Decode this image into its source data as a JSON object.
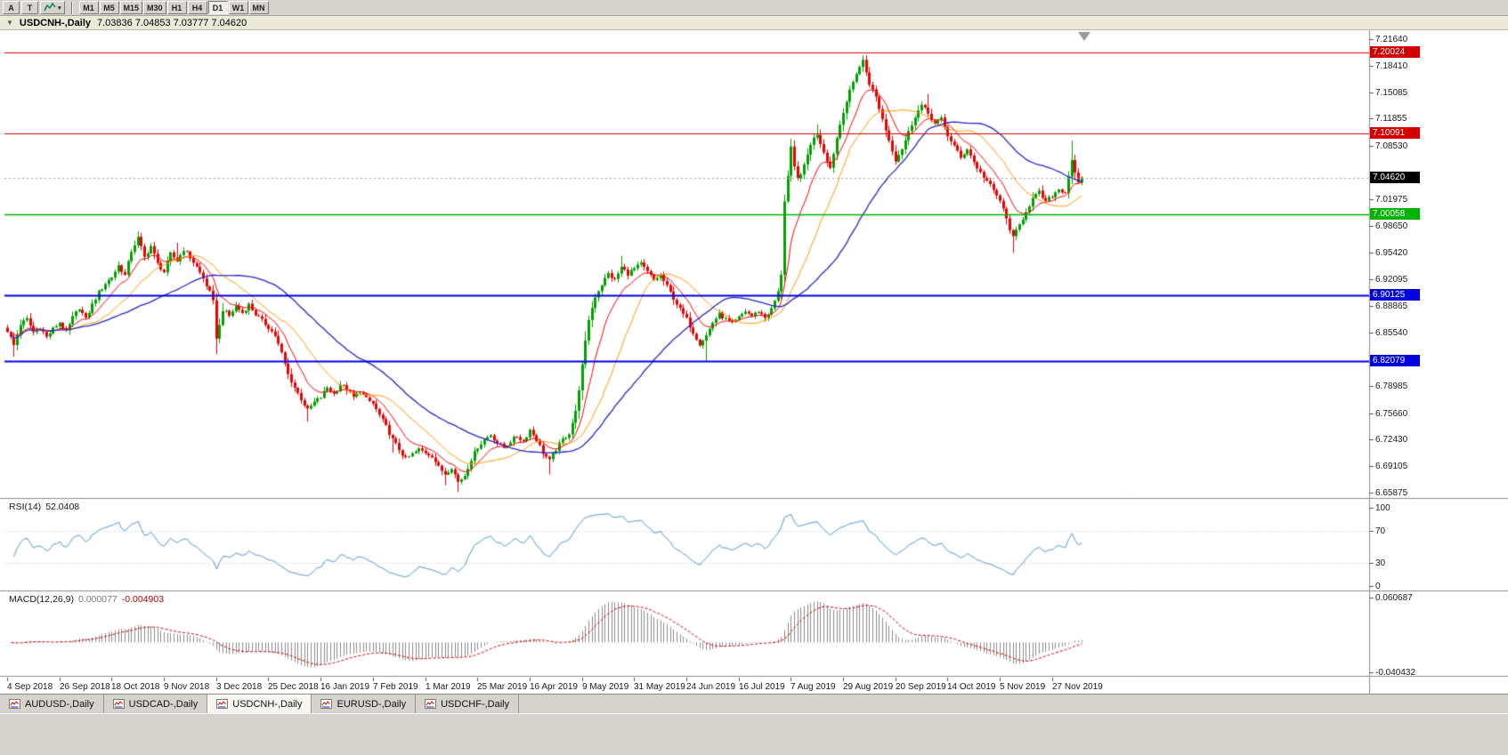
{
  "toolbar": {
    "left_buttons": [
      {
        "label": "A"
      },
      {
        "label": "T"
      }
    ],
    "timeframes": [
      "M1",
      "M5",
      "M15",
      "M30",
      "H1",
      "H4",
      "D1",
      "W1",
      "MN"
    ],
    "active_timeframe": "D1"
  },
  "chart": {
    "title": "USDCNH-,Daily",
    "ohlc_text": "7.03836 7.04853 7.03777 7.04620",
    "price_axis_ticks": [
      "7.21640",
      "7.18410",
      "7.15085",
      "7.11855",
      "7.08530",
      "7.01975",
      "6.98650",
      "6.95420",
      "6.92095",
      "6.88865",
      "6.85540",
      "6.78985",
      "6.75660",
      "6.72430",
      "6.69105",
      "6.65875"
    ],
    "price_badges": [
      {
        "label": "7.20024",
        "price": 7.20024,
        "color": "#d40000",
        "line_width": 1.2,
        "style": "solid"
      },
      {
        "label": "7.10091",
        "price": 7.10091,
        "color": "#d40000",
        "line_width": 1.2,
        "style": "solid"
      },
      {
        "label": "7.04620",
        "price": 7.0462,
        "color": "#000000",
        "line_width": 1,
        "style": "dotted"
      },
      {
        "label": "7.00058",
        "price": 7.00058,
        "color": "#00b300",
        "line_width": 1.6,
        "style": "solid"
      },
      {
        "label": "6.90125",
        "price": 6.90125,
        "color": "#0000e0",
        "line_width": 2,
        "style": "solid"
      },
      {
        "label": "6.82079",
        "price": 6.82079,
        "color": "#0000e0",
        "line_width": 2,
        "style": "solid"
      }
    ],
    "date_labels": [
      "4 Sep 2018",
      "26 Sep 2018",
      "18 Oct 2018",
      "9 Nov 2018",
      "3 Dec 2018",
      "25 Dec 2018",
      "16 Jan 2019",
      "7 Feb 2019",
      "1 Mar 2019",
      "25 Mar 2019",
      "16 Apr 2019",
      "9 May 2019",
      "31 May 2019",
      "24 Jun 2019",
      "16 Jul 2019",
      "7 Aug 2019",
      "29 Aug 2019",
      "20 Sep 2019",
      "14 Oct 2019",
      "5 Nov 2019",
      "27 Nov 2019"
    ]
  },
  "chart_data": {
    "type": "candlestick",
    "symbol": "USDCNH",
    "period": "Daily",
    "last_ohlc": {
      "open": 7.03836,
      "high": 7.04853,
      "low": 7.03777,
      "close": 7.0462
    },
    "candles_count": 330,
    "candles_per_label": 16,
    "up_color": "#00a000",
    "down_color": "#ee0000",
    "horizontal_levels": [
      7.20024,
      7.10091,
      7.00058,
      6.90125,
      6.82079
    ],
    "moving_averages": [
      {
        "type": "ema",
        "period": 10,
        "color": "#ff0000"
      },
      {
        "type": "sma",
        "period": 21,
        "color": "#ff9900"
      },
      {
        "type": "sma",
        "period": 45,
        "color": "#2626c8"
      }
    ],
    "close_anchors": [
      [
        0,
        6.858
      ],
      [
        2,
        6.84
      ],
      [
        4,
        6.866
      ],
      [
        6,
        6.872
      ],
      [
        8,
        6.856
      ],
      [
        10,
        6.862
      ],
      [
        12,
        6.85
      ],
      [
        14,
        6.86
      ],
      [
        16,
        6.868
      ],
      [
        18,
        6.856
      ],
      [
        20,
        6.874
      ],
      [
        22,
        6.886
      ],
      [
        24,
        6.872
      ],
      [
        26,
        6.89
      ],
      [
        28,
        6.905
      ],
      [
        30,
        6.916
      ],
      [
        32,
        6.924
      ],
      [
        34,
        6.938
      ],
      [
        36,
        6.926
      ],
      [
        38,
        6.956
      ],
      [
        40,
        6.972
      ],
      [
        42,
        6.948
      ],
      [
        44,
        6.962
      ],
      [
        46,
        6.94
      ],
      [
        48,
        6.93
      ],
      [
        50,
        6.952
      ],
      [
        52,
        6.944
      ],
      [
        54,
        6.958
      ],
      [
        56,
        6.948
      ],
      [
        58,
        6.936
      ],
      [
        60,
        6.922
      ],
      [
        62,
        6.905
      ],
      [
        63,
        6.893
      ],
      [
        64,
        6.85
      ],
      [
        65,
        6.864
      ],
      [
        66,
        6.884
      ],
      [
        68,
        6.876
      ],
      [
        70,
        6.888
      ],
      [
        72,
        6.88
      ],
      [
        74,
        6.89
      ],
      [
        76,
        6.878
      ],
      [
        78,
        6.87
      ],
      [
        80,
        6.862
      ],
      [
        82,
        6.852
      ],
      [
        84,
        6.83
      ],
      [
        86,
        6.804
      ],
      [
        88,
        6.788
      ],
      [
        90,
        6.774
      ],
      [
        92,
        6.76
      ],
      [
        94,
        6.77
      ],
      [
        96,
        6.776
      ],
      [
        98,
        6.788
      ],
      [
        100,
        6.78
      ],
      [
        102,
        6.792
      ],
      [
        104,
        6.786
      ],
      [
        106,
        6.776
      ],
      [
        108,
        6.784
      ],
      [
        110,
        6.774
      ],
      [
        112,
        6.768
      ],
      [
        114,
        6.754
      ],
      [
        116,
        6.74
      ],
      [
        118,
        6.724
      ],
      [
        120,
        6.712
      ],
      [
        122,
        6.7
      ],
      [
        124,
        6.706
      ],
      [
        126,
        6.712
      ],
      [
        128,
        6.708
      ],
      [
        130,
        6.704
      ],
      [
        132,
        6.69
      ],
      [
        134,
        6.682
      ],
      [
        136,
        6.69
      ],
      [
        138,
        6.672
      ],
      [
        140,
        6.68
      ],
      [
        142,
        6.7
      ],
      [
        144,
        6.715
      ],
      [
        146,
        6.724
      ],
      [
        148,
        6.73
      ],
      [
        150,
        6.72
      ],
      [
        152,
        6.714
      ],
      [
        154,
        6.722
      ],
      [
        156,
        6.728
      ],
      [
        158,
        6.722
      ],
      [
        160,
        6.736
      ],
      [
        162,
        6.724
      ],
      [
        164,
        6.708
      ],
      [
        166,
        6.698
      ],
      [
        168,
        6.712
      ],
      [
        170,
        6.724
      ],
      [
        172,
        6.732
      ],
      [
        174,
        6.758
      ],
      [
        176,
        6.815
      ],
      [
        178,
        6.872
      ],
      [
        180,
        6.9
      ],
      [
        182,
        6.915
      ],
      [
        184,
        6.928
      ],
      [
        186,
        6.92
      ],
      [
        188,
        6.936
      ],
      [
        190,
        6.928
      ],
      [
        192,
        6.934
      ],
      [
        194,
        6.94
      ],
      [
        196,
        6.93
      ],
      [
        198,
        6.92
      ],
      [
        200,
        6.926
      ],
      [
        202,
        6.912
      ],
      [
        204,
        6.898
      ],
      [
        206,
        6.884
      ],
      [
        208,
        6.872
      ],
      [
        210,
        6.856
      ],
      [
        212,
        6.842
      ],
      [
        214,
        6.852
      ],
      [
        216,
        6.868
      ],
      [
        218,
        6.878
      ],
      [
        220,
        6.872
      ],
      [
        222,
        6.866
      ],
      [
        224,
        6.874
      ],
      [
        226,
        6.882
      ],
      [
        228,
        6.876
      ],
      [
        230,
        6.882
      ],
      [
        232,
        6.874
      ],
      [
        234,
        6.884
      ],
      [
        236,
        6.905
      ],
      [
        237,
        6.928
      ],
      [
        238,
        7.018
      ],
      [
        239,
        7.048
      ],
      [
        240,
        7.082
      ],
      [
        241,
        7.058
      ],
      [
        242,
        7.044
      ],
      [
        244,
        7.06
      ],
      [
        246,
        7.088
      ],
      [
        248,
        7.1
      ],
      [
        250,
        7.078
      ],
      [
        252,
        7.058
      ],
      [
        254,
        7.095
      ],
      [
        256,
        7.128
      ],
      [
        258,
        7.152
      ],
      [
        260,
        7.175
      ],
      [
        262,
        7.19
      ],
      [
        264,
        7.162
      ],
      [
        266,
        7.145
      ],
      [
        268,
        7.118
      ],
      [
        270,
        7.092
      ],
      [
        272,
        7.068
      ],
      [
        274,
        7.082
      ],
      [
        276,
        7.102
      ],
      [
        278,
        7.122
      ],
      [
        280,
        7.135
      ],
      [
        282,
        7.125
      ],
      [
        284,
        7.112
      ],
      [
        286,
        7.118
      ],
      [
        288,
        7.098
      ],
      [
        290,
        7.085
      ],
      [
        292,
        7.07
      ],
      [
        294,
        7.082
      ],
      [
        296,
        7.065
      ],
      [
        298,
        7.052
      ],
      [
        300,
        7.042
      ],
      [
        302,
        7.03
      ],
      [
        304,
        7.018
      ],
      [
        306,
        6.995
      ],
      [
        308,
        6.972
      ],
      [
        310,
        6.988
      ],
      [
        312,
        7.005
      ],
      [
        314,
        7.02
      ],
      [
        316,
        7.028
      ],
      [
        318,
        7.016
      ],
      [
        320,
        7.024
      ],
      [
        322,
        7.032
      ],
      [
        324,
        7.028
      ],
      [
        326,
        7.068
      ],
      [
        327,
        7.052
      ],
      [
        328,
        7.04
      ],
      [
        329,
        7.046
      ]
    ],
    "extremes": [
      [
        2,
        "l",
        6.826
      ],
      [
        40,
        "h",
        6.98
      ],
      [
        52,
        "h",
        6.966
      ],
      [
        64,
        "l",
        6.829
      ],
      [
        92,
        "l",
        6.746
      ],
      [
        118,
        "l",
        6.708
      ],
      [
        134,
        "l",
        6.668
      ],
      [
        138,
        "l",
        6.6595
      ],
      [
        166,
        "l",
        6.681
      ],
      [
        188,
        "h",
        6.95
      ],
      [
        214,
        "l",
        6.821
      ],
      [
        238,
        "l",
        6.922
      ],
      [
        248,
        "h",
        7.112
      ],
      [
        262,
        "h",
        7.1963
      ],
      [
        282,
        "h",
        7.149
      ],
      [
        308,
        "l",
        6.9535
      ],
      [
        326,
        "h",
        7.0915
      ]
    ]
  },
  "rsi": {
    "name": "RSI(14)",
    "value": "52.0408",
    "period": 14,
    "scale_labels": [
      "100",
      "70",
      "30",
      "0"
    ],
    "guide_levels": [
      70,
      30
    ],
    "line_color": "#4f96d8"
  },
  "macd": {
    "name": "MACD(12,26,9)",
    "value_main": "0.000077",
    "value_signal": "-0.004903",
    "fast": 12,
    "slow": 26,
    "signal": 9,
    "scale_top": "0.060687",
    "scale_bottom": "-0.040432",
    "histogram_color": "#8c8c8c",
    "signal_color": "#d40000"
  },
  "tabs": {
    "items": [
      {
        "label": "AUDUSD-,Daily",
        "active": false
      },
      {
        "label": "USDCAD-,Daily",
        "active": false
      },
      {
        "label": "USDCNH-,Daily",
        "active": true
      },
      {
        "label": "EURUSD-,Daily",
        "active": false
      },
      {
        "label": "USDCHF-,Daily",
        "active": false
      }
    ]
  }
}
